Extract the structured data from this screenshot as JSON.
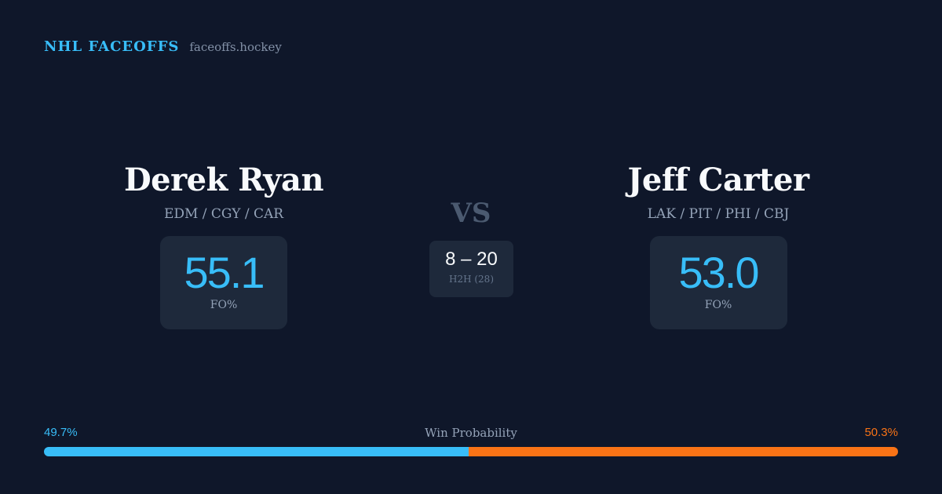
{
  "brand": {
    "name": "NHL FACEOFFS",
    "url": "faceoffs.hockey"
  },
  "players": {
    "left": {
      "name": "Derek Ryan",
      "teams": "EDM / CGY / CAR",
      "fo_value": "55.1",
      "fo_label": "FO%"
    },
    "right": {
      "name": "Jeff Carter",
      "teams": "LAK / PIT / PHI / CBJ",
      "fo_value": "53.0",
      "fo_label": "FO%"
    }
  },
  "matchup": {
    "vs_label": "VS",
    "h2h_score": "8 – 20",
    "h2h_label": "H2H (28)"
  },
  "win_probability": {
    "title": "Win Probability",
    "left_label": "49.7%",
    "right_label": "50.3%",
    "left_value": 49.7,
    "right_value": 50.3
  },
  "colors": {
    "background": "#0f172a",
    "card": "#1e293b",
    "accent_blue": "#38bdf8",
    "accent_orange": "#f97316"
  }
}
